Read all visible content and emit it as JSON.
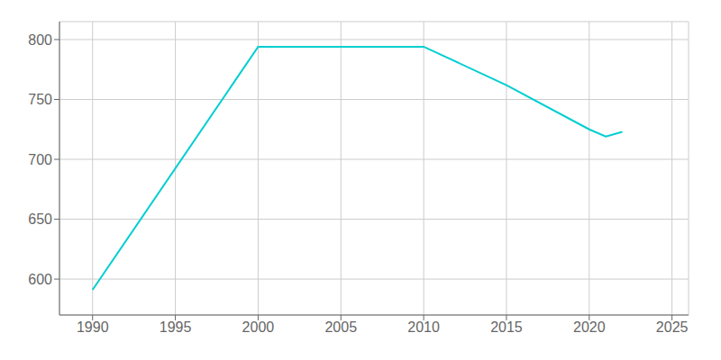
{
  "chart_data": {
    "type": "line",
    "x": [
      1990,
      2000,
      2010,
      2015,
      2020,
      2021,
      2022
    ],
    "values": [
      591,
      794,
      794,
      762,
      725,
      719,
      723
    ],
    "color": "#00CED1",
    "xlim": [
      1988,
      2026
    ],
    "ylim": [
      570,
      815
    ],
    "xticks": [
      1990,
      1995,
      2000,
      2005,
      2010,
      2015,
      2020,
      2025
    ],
    "yticks": [
      600,
      650,
      700,
      750,
      800
    ],
    "grid": true
  }
}
